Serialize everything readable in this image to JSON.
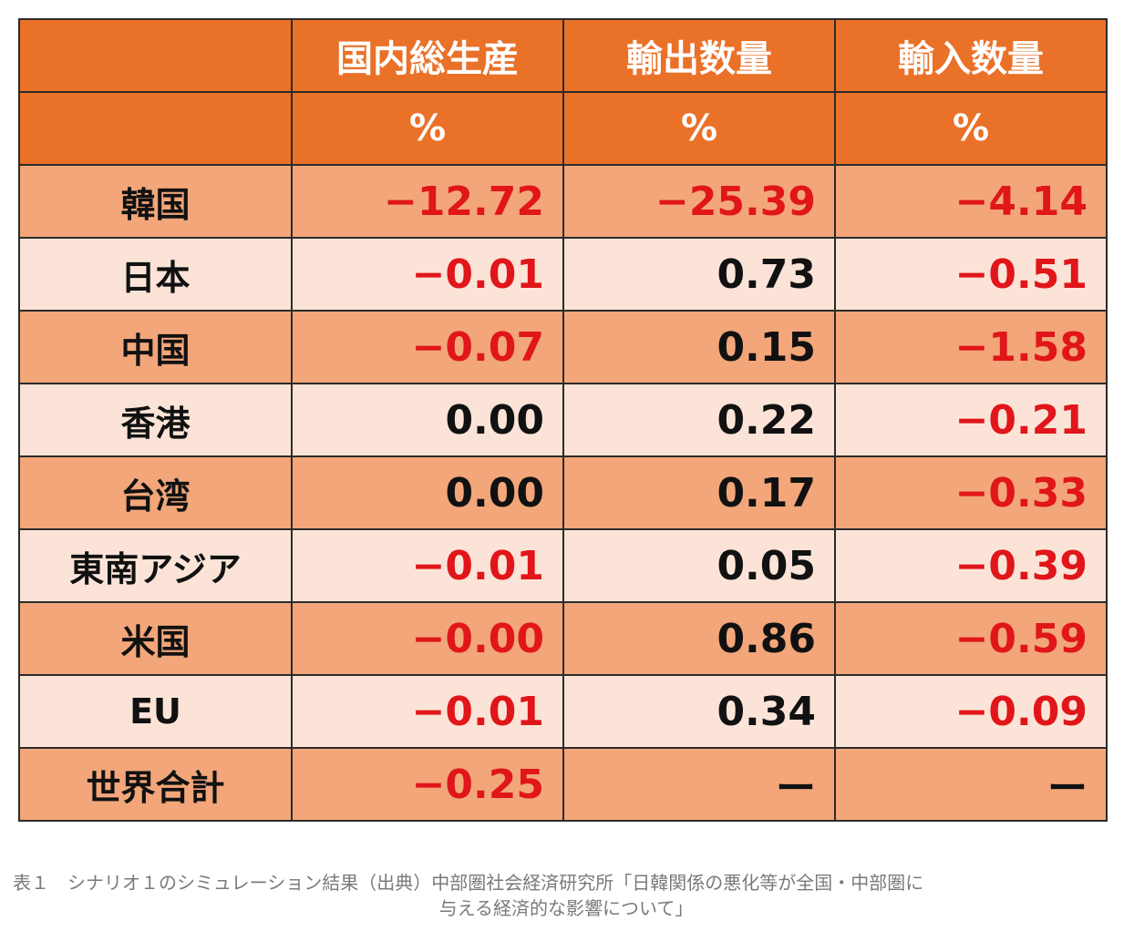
{
  "chart_data": {
    "type": "table",
    "columns": [
      "",
      "国内総生産",
      "輸出数量",
      "輸入数量"
    ],
    "units": [
      "",
      "%",
      "%",
      "%"
    ],
    "rows": [
      {
        "label": "韓国",
        "values": [
          "−12.72",
          "−25.39",
          "−4.14"
        ]
      },
      {
        "label": "日本",
        "values": [
          "−0.01",
          "0.73",
          "−0.51"
        ]
      },
      {
        "label": "中国",
        "values": [
          "−0.07",
          "0.15",
          "−1.58"
        ]
      },
      {
        "label": "香港",
        "values": [
          "0.00",
          "0.22",
          "−0.21"
        ]
      },
      {
        "label": "台湾",
        "values": [
          "0.00",
          "0.17",
          "−0.33"
        ]
      },
      {
        "label": "東南アジア",
        "values": [
          "−0.01",
          "0.05",
          "−0.39"
        ]
      },
      {
        "label": "米国",
        "values": [
          "−0.00",
          "0.86",
          "−0.59"
        ]
      },
      {
        "label": "EU",
        "values": [
          "−0.01",
          "0.34",
          "−0.09"
        ]
      },
      {
        "label": "世界合計",
        "values": [
          "−0.25",
          "ー",
          "ー"
        ]
      }
    ],
    "numeric_values": [
      [
        -12.72,
        -25.39,
        -4.14
      ],
      [
        -0.01,
        0.73,
        -0.51
      ],
      [
        -0.07,
        0.15,
        -1.58
      ],
      [
        0.0,
        0.22,
        -0.21
      ],
      [
        0.0,
        0.17,
        -0.33
      ],
      [
        -0.01,
        0.05,
        -0.39
      ],
      [
        -0.0,
        0.86,
        -0.59
      ],
      [
        -0.01,
        0.34,
        -0.09
      ],
      [
        -0.25,
        null,
        null
      ]
    ]
  },
  "caption": {
    "line1": "表１　シナリオ１のシミュレーション結果（出典）中部圏社会経済研究所「日韓関係の悪化等が全国・中部圏に",
    "line2": "与える経済的な影響について」"
  },
  "colors": {
    "header": "#ea7128",
    "row_dark": "#f2a679",
    "row_light": "#fbe4d7",
    "negative": "#e0161a",
    "positive": "#111111",
    "header_text": "#ffffff",
    "border": "#2b2b2b"
  }
}
